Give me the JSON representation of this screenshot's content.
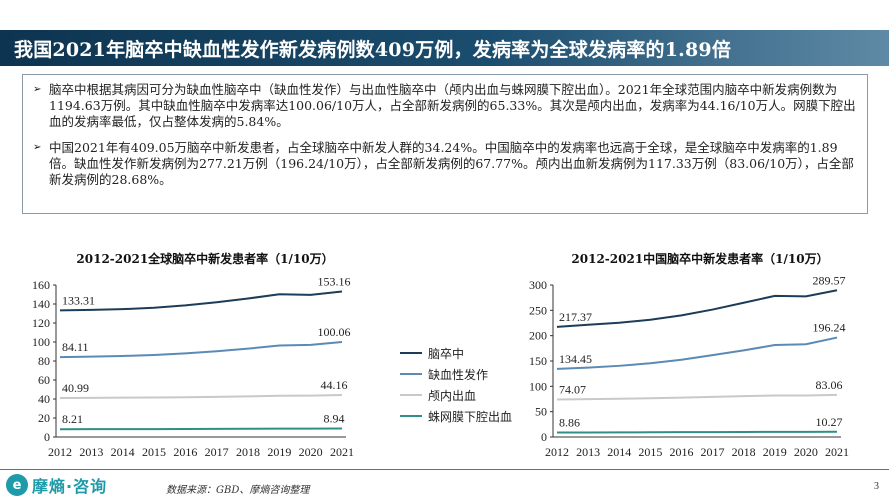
{
  "title": "我国2021年脑卒中缺血性发作新发病例数409万例，发病率为全球发病率的1.89倍",
  "bullets": [
    "脑卒中根据其病因可分为缺血性脑卒中（缺血性发作）与出血性脑卒中（颅内出血与蛛网膜下腔出血）。2021年全球范围内脑卒中新发病例数为1194.63万例。其中缺血性脑卒中发病率达100.06/10万人，占全部新发病例的65.33%。其次是颅内出血，发病率为44.16/10万人。网膜下腔出血的发病率最低，仅占整体发病的5.84%。",
    "中国2021年有409.05万脑卒中新发患者，占全球脑卒中新发人群的34.24%。中国脑卒中的发病率也远高于全球，是全球脑卒中发病率的1.89倍。缺血性发作新发病例为277.21万例（196.24/10万），占全部新发病例的67.77%。颅内出血新发病例为117.33万例（83.06/10万），占全部新发病例的28.68%。"
  ],
  "legend": [
    {
      "label": "脑卒中",
      "color": "#1c3c58"
    },
    {
      "label": "缺血性发作",
      "color": "#5b8ab5"
    },
    {
      "label": "颅内出血",
      "color": "#c9c9c9"
    },
    {
      "label": "蛛网膜下腔出血",
      "color": "#2f8f86"
    }
  ],
  "logo": {
    "mark": "e",
    "text": "摩熵·咨询"
  },
  "source": "数据来源：GBD、摩熵咨询整理",
  "page_number": "3",
  "chart_data": [
    {
      "type": "line",
      "title": "2012-2021全球脑卒中新发患者率（1/10万）",
      "x": [
        "2012",
        "2013",
        "2014",
        "2015",
        "2016",
        "2017",
        "2018",
        "2019",
        "2020",
        "2021"
      ],
      "ylim": [
        0,
        160
      ],
      "yticks": [
        0,
        20,
        40,
        60,
        80,
        100,
        120,
        140,
        160
      ],
      "series": [
        {
          "name": "脑卒中",
          "color": "#1c3c58",
          "values": [
            133.31,
            133.8,
            134.6,
            136.0,
            138.5,
            141.8,
            145.8,
            150.2,
            149.6,
            153.16
          ],
          "start_label": "133.31",
          "end_label": "153.16"
        },
        {
          "name": "缺血性发作",
          "color": "#5b8ab5",
          "values": [
            84.11,
            84.6,
            85.3,
            86.3,
            88.0,
            90.3,
            93.0,
            96.3,
            97.0,
            100.06
          ],
          "start_label": "84.11",
          "end_label": "100.06"
        },
        {
          "name": "颅内出血",
          "color": "#c9c9c9",
          "values": [
            40.99,
            41.2,
            41.4,
            41.6,
            41.9,
            42.3,
            42.8,
            43.4,
            43.6,
            44.16
          ],
          "start_label": "40.99",
          "end_label": "44.16"
        },
        {
          "name": "蛛网膜下腔出血",
          "color": "#2f8f86",
          "values": [
            8.21,
            8.25,
            8.3,
            8.35,
            8.45,
            8.55,
            8.65,
            8.8,
            8.85,
            8.94
          ],
          "start_label": "8.21",
          "end_label": "8.94"
        }
      ]
    },
    {
      "type": "line",
      "title": "2012-2021中国脑卒中新发患者率（1/10万）",
      "x": [
        "2012",
        "2013",
        "2014",
        "2015",
        "2016",
        "2017",
        "2018",
        "2019",
        "2020",
        "2021"
      ],
      "ylim": [
        0,
        300
      ],
      "yticks": [
        0,
        50,
        100,
        150,
        200,
        250,
        300
      ],
      "series": [
        {
          "name": "脑卒中",
          "color": "#1c3c58",
          "values": [
            217.37,
            221.5,
            225.5,
            231.5,
            240.0,
            251.5,
            265.0,
            278.5,
            277.5,
            289.57
          ],
          "start_label": "217.37",
          "end_label": "289.57"
        },
        {
          "name": "缺血性发作",
          "color": "#5b8ab5",
          "values": [
            134.45,
            137.0,
            140.5,
            145.5,
            152.5,
            161.5,
            171.0,
            181.5,
            183.0,
            196.24
          ],
          "start_label": "134.45",
          "end_label": "196.24"
        },
        {
          "name": "颅内出血",
          "color": "#c9c9c9",
          "values": [
            74.07,
            74.8,
            75.5,
            76.5,
            77.8,
            79.2,
            80.6,
            82.0,
            81.8,
            83.06
          ],
          "start_label": "74.07",
          "end_label": "83.06"
        },
        {
          "name": "蛛网膜下腔出血",
          "color": "#2f8f86",
          "values": [
            8.86,
            9.0,
            9.15,
            9.3,
            9.5,
            9.7,
            9.9,
            10.1,
            10.1,
            10.27
          ],
          "start_label": "8.86",
          "end_label": "10.27"
        }
      ]
    }
  ]
}
